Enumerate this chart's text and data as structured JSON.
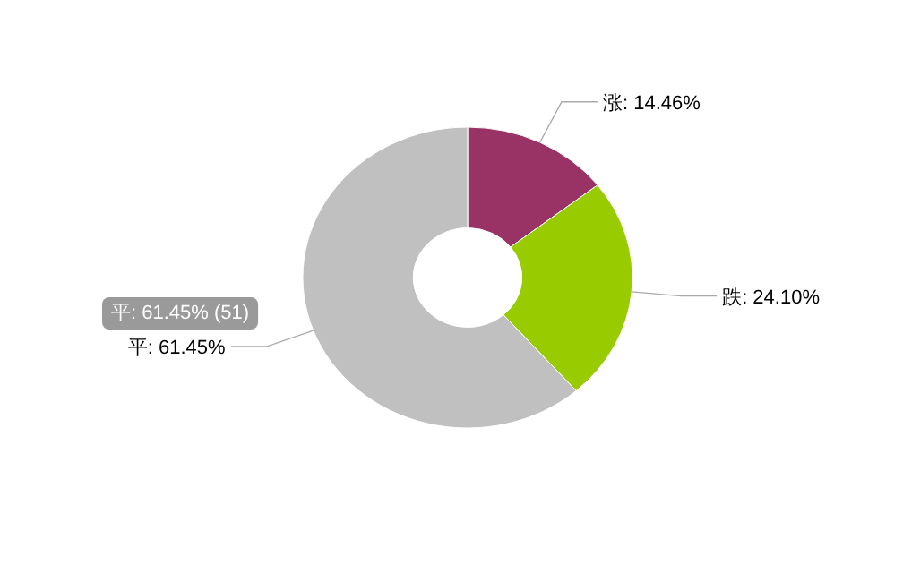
{
  "chart_data": {
    "type": "donut",
    "categories": [
      "涨",
      "跌",
      "平"
    ],
    "values": [
      14.46,
      24.1,
      61.45
    ],
    "colors": [
      "#993366",
      "#99cc00",
      "#c0c0c0"
    ],
    "value_labels": [
      ": 14.46%",
      ": 24.10%",
      ": 61.45%"
    ],
    "annotations": [
      "平: 61.45% (51)"
    ]
  }
}
